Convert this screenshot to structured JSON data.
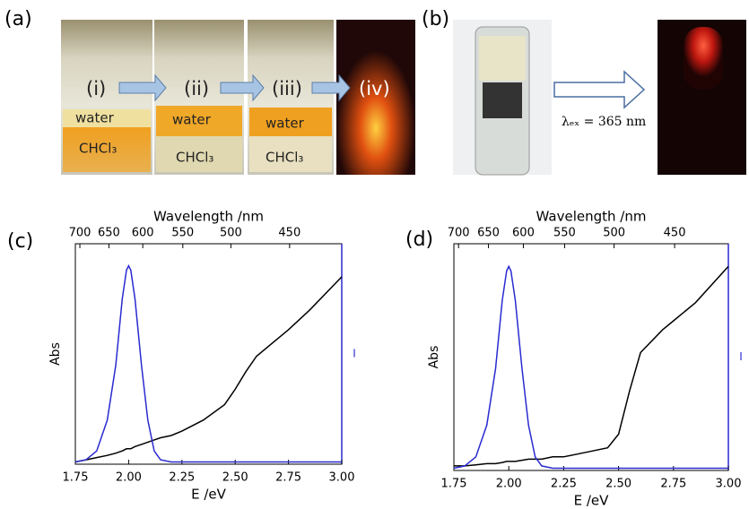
{
  "panels": {
    "a": {
      "label": "(a)",
      "steps": [
        "(i)",
        "(ii)",
        "(iii)",
        "(iv)"
      ],
      "layers": [
        "water",
        "CHCl₃"
      ]
    },
    "b": {
      "label": "(b)",
      "excitation": "λₑₓ = 365 nm"
    }
  },
  "chart_data": [
    {
      "type": "line",
      "label": "(c)",
      "xlabel": "E /eV",
      "x2label": "Wavelength /nm",
      "ylabel": "Abs",
      "y2label": "I",
      "x": [
        1.75,
        1.8,
        1.85,
        1.9,
        1.94,
        1.97,
        1.99,
        2.0,
        2.01,
        2.03,
        2.06,
        2.09,
        2.12,
        2.15,
        2.2,
        2.25,
        2.35,
        2.45,
        2.5,
        2.55,
        2.6,
        2.7,
        2.75,
        2.85,
        3.0
      ],
      "xlim": [
        1.75,
        3.0
      ],
      "xticks": [
        1.75,
        {
          "value": 2,
          "label": "2.00"
        },
        2.25,
        {
          "value": 2.5,
          "label": "2.50"
        },
        2.75,
        {
          "value": 3,
          "label": "3.00"
        }
      ],
      "x2ticks": [
        700,
        650,
        600,
        550,
        500,
        450
      ],
      "ylim": [
        0,
        100
      ],
      "y2lim": [
        0,
        100
      ],
      "series": [
        {
          "name": "Abs",
          "color": "#000000",
          "values": [
            1,
            2,
            3,
            4,
            5,
            6,
            7,
            7,
            7,
            8,
            9,
            10,
            11,
            12,
            13,
            15,
            20,
            27,
            34,
            42,
            49,
            57,
            61,
            70,
            85
          ]
        },
        {
          "name": "I",
          "color": "#2a2ad0",
          "axis": "y2",
          "values": [
            1,
            2,
            6,
            20,
            45,
            75,
            88,
            90,
            88,
            75,
            45,
            20,
            6,
            2,
            1,
            1,
            1,
            1,
            1,
            1,
            1,
            1,
            1,
            1,
            1
          ]
        }
      ]
    },
    {
      "type": "line",
      "label": "(d)",
      "xlabel": "E /eV",
      "x2label": "Wavelength /nm",
      "ylabel": "Abs",
      "y2label": "I",
      "x": [
        1.75,
        1.8,
        1.85,
        1.9,
        1.94,
        1.97,
        1.99,
        2.0,
        2.01,
        2.03,
        2.06,
        2.09,
        2.12,
        2.15,
        2.2,
        2.25,
        2.35,
        2.45,
        2.5,
        2.55,
        2.6,
        2.7,
        2.75,
        2.85,
        3.0
      ],
      "xlim": [
        1.75,
        3.0
      ],
      "xticks": [
        1.75,
        {
          "value": 2,
          "label": "2.00"
        },
        2.25,
        {
          "value": 2.5,
          "label": "2.50"
        },
        2.75,
        {
          "value": 3,
          "label": "3.00"
        }
      ],
      "x2ticks": [
        700,
        650,
        600,
        550,
        500,
        450
      ],
      "ylim": [
        0,
        100
      ],
      "y2lim": [
        0,
        100
      ],
      "series": [
        {
          "name": "Abs",
          "color": "#000000",
          "values": [
            2,
            2,
            2.5,
            3,
            3,
            3.5,
            4,
            4,
            4,
            4,
            4.5,
            5,
            5,
            5,
            6,
            6,
            8,
            10,
            16,
            35,
            52,
            62,
            66,
            74,
            90
          ]
        },
        {
          "name": "I",
          "color": "#2a2ad0",
          "axis": "y2",
          "values": [
            1,
            2,
            6,
            20,
            45,
            75,
            88,
            90,
            88,
            75,
            45,
            20,
            6,
            2,
            1,
            1,
            1,
            1,
            1,
            1,
            1,
            1,
            1,
            1,
            1
          ]
        }
      ]
    }
  ]
}
